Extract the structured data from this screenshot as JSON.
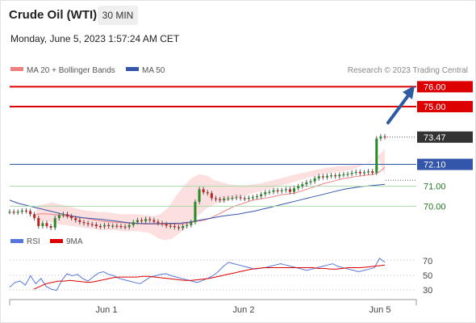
{
  "header": {
    "instrument": "Crude Oil (WTI)",
    "interval": "30 MIN",
    "datetime": "Monday, June 5, 2023 1:57:24 AM CET",
    "copyright": "Research © 2023 Trading Central"
  },
  "colors": {
    "resistance": "#dd0000",
    "current_price": "#333333",
    "ma50": "#3355aa",
    "support": "#227722",
    "support_line": "#a8d9a8",
    "bollinger_fill": "#fbd6d6",
    "ma20": "#f08080",
    "candle_up": "#2a8a2a",
    "candle_down": "#c22222",
    "rsi": "#5577dd",
    "rsi_ma": "#dd0000",
    "arrow": "#2d5aa0"
  },
  "chart_data": {
    "type": "candlestick",
    "ylim": [
      69.0,
      76.3
    ],
    "x_ticks": [
      "Jun 1",
      "Jun 2",
      "Jun 5"
    ],
    "legend": [
      {
        "name": "MA 20 + Bollinger Bands",
        "color": "#f08080"
      },
      {
        "name": "MA 50",
        "color": "#3355aa"
      }
    ],
    "levels": [
      {
        "value": 76.0,
        "label": "76.00",
        "kind": "resistance"
      },
      {
        "value": 75.0,
        "label": "75.00",
        "kind": "resistance"
      },
      {
        "value": 73.47,
        "label": "73.47",
        "kind": "current"
      },
      {
        "value": 72.1,
        "label": "72.10",
        "kind": "pivot"
      },
      {
        "value": 71.0,
        "label": "71.00",
        "kind": "support"
      },
      {
        "value": 70.0,
        "label": "70.00",
        "kind": "support"
      }
    ],
    "close_series": [
      69.72,
      69.69,
      69.72,
      69.78,
      69.75,
      69.6,
      69.4,
      69.0,
      69.15,
      69.0,
      68.92,
      69.4,
      69.55,
      69.6,
      69.5,
      69.4,
      69.3,
      69.2,
      69.15,
      69.1,
      69.08,
      69.0,
      68.98,
      69.05,
      69.0,
      69.02,
      69.0,
      68.98,
      68.95,
      69.05,
      69.2,
      69.3,
      69.25,
      69.35,
      69.3,
      69.22,
      69.15,
      69.1,
      69.02,
      69.0,
      68.95,
      68.9,
      69.0,
      69.05,
      69.2,
      70.22,
      70.85,
      70.7,
      70.65,
      70.4,
      70.35,
      70.3,
      70.38,
      70.4,
      70.42,
      70.45,
      70.4,
      70.38,
      70.42,
      70.45,
      70.5,
      70.6,
      70.7,
      70.72,
      70.8,
      70.75,
      70.8,
      70.85,
      70.72,
      70.9,
      71.0,
      71.1,
      71.2,
      71.25,
      71.4,
      71.5,
      71.45,
      71.52,
      71.55,
      71.5,
      71.58,
      71.6,
      71.62,
      71.68,
      71.72,
      71.65,
      71.7,
      71.75,
      71.68,
      73.4,
      73.5,
      73.47
    ],
    "ma20_series": [
      69.6,
      69.62,
      69.61,
      69.58,
      69.55,
      69.5,
      69.48,
      69.44,
      69.4,
      69.35,
      69.3,
      69.25,
      69.22,
      69.2,
      69.18,
      69.16,
      69.14,
      69.12,
      69.1,
      69.1,
      69.1,
      69.1,
      69.1,
      69.1,
      69.1,
      69.15,
      69.2,
      69.25,
      69.3,
      69.4,
      69.55,
      69.7,
      69.85,
      70.0,
      70.1,
      70.2,
      70.3,
      70.35,
      70.4,
      70.45,
      70.52,
      70.58,
      70.62,
      70.66,
      70.75,
      70.85,
      70.95,
      71.05,
      71.15,
      71.22,
      71.3,
      71.38,
      71.42,
      71.48,
      71.52,
      71.56,
      71.6,
      71.7,
      71.95
    ],
    "ma50_series": [
      70.3,
      70.15,
      70.05,
      69.95,
      69.85,
      69.75,
      69.65,
      69.55,
      69.48,
      69.42,
      69.38,
      69.35,
      69.3,
      69.25,
      69.2,
      69.15,
      69.13,
      69.12,
      69.12,
      69.13,
      69.14,
      69.15,
      69.2,
      69.28,
      69.35,
      69.42,
      69.5,
      69.55,
      69.6,
      69.68,
      69.75,
      69.85,
      69.95,
      70.05,
      70.15,
      70.25,
      70.35,
      70.45,
      70.55,
      70.65,
      70.75,
      70.85,
      70.92,
      70.98,
      71.02,
      71.06,
      71.1
    ],
    "bb_upper": [
      70.0,
      70.1,
      70.2,
      70.1,
      70.0,
      69.9,
      69.8,
      69.75,
      69.7,
      69.7,
      69.65,
      69.6,
      69.6,
      69.6,
      69.55,
      69.5,
      69.6,
      69.9,
      70.5,
      71.0,
      71.4,
      71.6,
      71.55,
      71.3,
      71.2,
      71.1,
      71.05,
      71.05,
      71.1,
      71.15,
      71.25,
      71.35,
      71.45,
      71.55,
      71.65,
      71.72,
      71.82,
      71.9,
      71.95,
      72.0,
      72.02,
      72.05,
      72.1,
      72.2,
      72.5,
      72.85
    ],
    "bb_lower": [
      69.3,
      69.25,
      69.2,
      69.1,
      69.05,
      69.0,
      68.95,
      68.9,
      68.85,
      68.8,
      68.8,
      68.8,
      68.75,
      68.75,
      68.75,
      68.7,
      68.65,
      68.4,
      68.3,
      68.35,
      68.6,
      68.9,
      69.3,
      69.6,
      69.9,
      70.1,
      70.2,
      70.3,
      70.4,
      70.5,
      70.6,
      70.7,
      70.8,
      70.9,
      71.0,
      71.1,
      71.2,
      71.3,
      71.4,
      71.5,
      71.6,
      71.65,
      71.7,
      71.75,
      71.8,
      71.9,
      72.1,
      72.3,
      72.5,
      71.55
    ],
    "rsi": {
      "legend": [
        {
          "name": "RSI",
          "color": "#5577dd"
        },
        {
          "name": "9MA",
          "color": "#dd0000"
        }
      ],
      "ticks": [
        "70",
        "50",
        "30"
      ],
      "ylim": [
        20,
        90
      ],
      "values": [
        35,
        42,
        44,
        38,
        52,
        40,
        48,
        36,
        32,
        30,
        45,
        55,
        52,
        54,
        48,
        44,
        50,
        56,
        58,
        54,
        52,
        48,
        46,
        44,
        42,
        40,
        45,
        50,
        52,
        54,
        55,
        52,
        50,
        48,
        46,
        44,
        42,
        45,
        48,
        52,
        58,
        66,
        72,
        70,
        68,
        66,
        64,
        62,
        63,
        64,
        66,
        68,
        70,
        68,
        66,
        64,
        62,
        60,
        62,
        64,
        66,
        68,
        70,
        66,
        64,
        62,
        60,
        58,
        60,
        62,
        64,
        78,
        72
      ],
      "ma_values": [
        32,
        36,
        40,
        42,
        44,
        44,
        45,
        44,
        43,
        42,
        43,
        45,
        47,
        49,
        50,
        50,
        50,
        50,
        51,
        51,
        50,
        49,
        48,
        47,
        46,
        45,
        45,
        46,
        47,
        48,
        50,
        52,
        54,
        56,
        58,
        60,
        62,
        63,
        64,
        64,
        64,
        64,
        64,
        64,
        64,
        64,
        64,
        63,
        63,
        62,
        62,
        63,
        64,
        64,
        64,
        65,
        66,
        67,
        68
      ]
    }
  }
}
